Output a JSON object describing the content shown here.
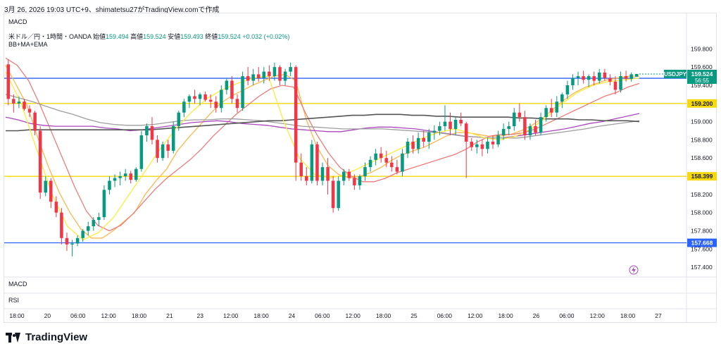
{
  "caption": "3月 26, 2026 19:03 UTC+9、shimatetsu27がTradingView.comで作成",
  "pane_top_label": "MACD",
  "symbol_header": {
    "name": "米ドル／円・1時間・OANDA",
    "open_label": "始値",
    "open": "159.494",
    "high_label": "高値",
    "high": "159.524",
    "low_label": "安値",
    "low": "159.493",
    "close_label": "終値",
    "close": "159.524",
    "change": "+0.032 (+0.02%)"
  },
  "indicator_label": "BB+MA+EMA",
  "lower_panes": [
    "MACD",
    "RSI"
  ],
  "brand": "TradingView",
  "colors": {
    "up": "#089981",
    "down": "#f23645",
    "blue_line": "#2962ff",
    "yellow_line": "#f5d90a",
    "ema_fast": "#ffb74d",
    "sma_mid": "#ef7b7b",
    "bb_upper": "#ab47bc",
    "bb_lower": "#9e9e9e",
    "long_ma": "#555555",
    "ema_short": "#ffeb3b"
  },
  "chart_data": {
    "type": "candlestick",
    "symbol": "USDJPY",
    "timeframe": "1時間",
    "ylim": [
      157.3,
      159.95
    ],
    "y_ticks": [
      "159.800",
      "159.600",
      "159.400",
      "159.000",
      "158.800",
      "158.600",
      "158.200",
      "158.000",
      "157.800",
      "157.600",
      "157.400"
    ],
    "x_ticks": [
      "18:00",
      "20",
      "06:00",
      "12:00",
      "18:00",
      "21",
      "23",
      "12:00",
      "18:00",
      "24",
      "06:00",
      "12:00",
      "18:00",
      "25",
      "06:00",
      "12:00",
      "18:00",
      "26",
      "06:00",
      "12:00",
      "18:00",
      "27"
    ],
    "horizontal_lines": [
      {
        "value": 159.477,
        "label": "159.477",
        "color": "#2962ff"
      },
      {
        "value": 159.2,
        "label": "159.200",
        "color": "#f5d90a"
      },
      {
        "value": 158.399,
        "label": "158.399",
        "color": "#f5d90a"
      },
      {
        "value": 157.668,
        "label": "157.668",
        "color": "#2962ff"
      }
    ],
    "last_price": {
      "label": "USDJPY",
      "price": "159.524",
      "countdown": "56:55"
    },
    "candles": [
      [
        159.63,
        159.68,
        159.18,
        159.25
      ],
      [
        159.25,
        159.3,
        159.1,
        159.2
      ],
      [
        159.2,
        159.28,
        159.15,
        159.22
      ],
      [
        159.22,
        159.25,
        159.12,
        159.14
      ],
      [
        159.14,
        159.18,
        159.05,
        159.1
      ],
      [
        159.1,
        159.12,
        158.85,
        158.9
      ],
      [
        158.9,
        158.95,
        158.15,
        158.22
      ],
      [
        158.22,
        158.4,
        158.18,
        158.35
      ],
      [
        158.35,
        158.38,
        158.05,
        158.12
      ],
      [
        158.12,
        158.18,
        157.95,
        158.0
      ],
      [
        158.0,
        158.05,
        157.65,
        157.72
      ],
      [
        157.72,
        157.78,
        157.58,
        157.65
      ],
      [
        157.65,
        157.7,
        157.52,
        157.66
      ],
      [
        157.66,
        157.75,
        157.63,
        157.72
      ],
      [
        157.72,
        157.82,
        157.68,
        157.8
      ],
      [
        157.8,
        157.9,
        157.75,
        157.85
      ],
      [
        157.85,
        157.95,
        157.8,
        157.92
      ],
      [
        157.92,
        158.0,
        157.85,
        157.95
      ],
      [
        157.95,
        158.3,
        157.92,
        158.25
      ],
      [
        158.25,
        158.4,
        158.2,
        158.35
      ],
      [
        158.35,
        158.42,
        158.28,
        158.38
      ],
      [
        158.38,
        158.45,
        158.3,
        158.4
      ],
      [
        158.4,
        158.48,
        158.35,
        158.43
      ],
      [
        158.43,
        158.46,
        158.32,
        158.36
      ],
      [
        158.36,
        158.5,
        158.34,
        158.48
      ],
      [
        158.48,
        158.9,
        158.45,
        158.85
      ],
      [
        158.85,
        158.98,
        158.78,
        158.95
      ],
      [
        158.95,
        159.05,
        158.75,
        158.8
      ],
      [
        158.8,
        158.85,
        158.55,
        158.6
      ],
      [
        158.6,
        158.78,
        158.57,
        158.75
      ],
      [
        158.75,
        158.8,
        158.6,
        158.68
      ],
      [
        158.68,
        159.0,
        158.65,
        158.95
      ],
      [
        158.95,
        159.12,
        158.9,
        159.1
      ],
      [
        159.1,
        159.25,
        159.05,
        159.22
      ],
      [
        159.22,
        159.3,
        159.15,
        159.28
      ],
      [
        159.28,
        159.35,
        159.2,
        159.25
      ],
      [
        159.25,
        159.32,
        159.18,
        159.3
      ],
      [
        159.3,
        159.33,
        159.22,
        159.24
      ],
      [
        159.24,
        159.3,
        159.15,
        159.22
      ],
      [
        159.22,
        159.28,
        159.1,
        159.15
      ],
      [
        159.15,
        159.4,
        159.1,
        159.35
      ],
      [
        159.35,
        159.48,
        159.3,
        159.45
      ],
      [
        159.45,
        159.5,
        159.2,
        159.25
      ],
      [
        159.25,
        159.3,
        159.1,
        159.15
      ],
      [
        159.15,
        159.55,
        159.12,
        159.5
      ],
      [
        159.5,
        159.6,
        159.4,
        159.45
      ],
      [
        159.45,
        159.58,
        159.4,
        159.52
      ],
      [
        159.52,
        159.6,
        159.44,
        159.48
      ],
      [
        159.48,
        159.6,
        159.42,
        159.55
      ],
      [
        159.55,
        159.62,
        159.45,
        159.5
      ],
      [
        159.5,
        159.65,
        159.45,
        159.6
      ],
      [
        159.6,
        159.62,
        159.4,
        159.45
      ],
      [
        159.45,
        159.58,
        159.4,
        159.55
      ],
      [
        159.55,
        159.65,
        159.5,
        159.6
      ],
      [
        159.6,
        159.62,
        158.35,
        158.55
      ],
      [
        158.55,
        158.65,
        158.35,
        158.4
      ],
      [
        158.4,
        158.5,
        158.3,
        158.35
      ],
      [
        158.35,
        158.8,
        158.32,
        158.75
      ],
      [
        158.75,
        158.78,
        158.3,
        158.35
      ],
      [
        158.35,
        158.55,
        158.3,
        158.5
      ],
      [
        158.5,
        158.6,
        158.2,
        158.35
      ],
      [
        158.35,
        158.4,
        158.0,
        158.05
      ],
      [
        158.05,
        158.4,
        158.02,
        158.35
      ],
      [
        158.35,
        158.48,
        158.3,
        158.45
      ],
      [
        158.45,
        158.48,
        158.35,
        158.38
      ],
      [
        158.38,
        158.42,
        158.25,
        158.3
      ],
      [
        158.3,
        158.42,
        158.25,
        158.4
      ],
      [
        158.4,
        158.55,
        158.35,
        158.5
      ],
      [
        158.5,
        158.62,
        158.45,
        158.58
      ],
      [
        158.58,
        158.7,
        158.52,
        158.65
      ],
      [
        158.65,
        158.72,
        158.55,
        158.6
      ],
      [
        158.6,
        158.68,
        158.5,
        158.55
      ],
      [
        158.55,
        158.62,
        158.45,
        158.5
      ],
      [
        158.5,
        158.58,
        158.42,
        158.45
      ],
      [
        158.45,
        158.7,
        158.4,
        158.65
      ],
      [
        158.65,
        158.82,
        158.6,
        158.78
      ],
      [
        158.78,
        158.85,
        158.65,
        158.7
      ],
      [
        158.7,
        158.88,
        158.65,
        158.82
      ],
      [
        158.82,
        158.9,
        158.72,
        158.78
      ],
      [
        158.78,
        158.92,
        158.7,
        158.88
      ],
      [
        158.88,
        158.96,
        158.8,
        158.9
      ],
      [
        158.9,
        159.0,
        158.85,
        158.95
      ],
      [
        158.95,
        159.18,
        158.9,
        159.0
      ],
      [
        159.0,
        159.1,
        158.85,
        158.92
      ],
      [
        158.92,
        159.05,
        158.85,
        159.02
      ],
      [
        159.02,
        159.1,
        158.95,
        158.98
      ],
      [
        158.98,
        159.0,
        158.38,
        158.78
      ],
      [
        158.78,
        158.82,
        158.68,
        158.72
      ],
      [
        158.72,
        158.8,
        158.65,
        158.75
      ],
      [
        158.75,
        158.8,
        158.62,
        158.7
      ],
      [
        158.7,
        158.82,
        158.65,
        158.78
      ],
      [
        158.78,
        158.85,
        158.7,
        158.75
      ],
      [
        158.75,
        158.9,
        158.72,
        158.85
      ],
      [
        158.85,
        158.98,
        158.8,
        158.92
      ],
      [
        158.92,
        159.0,
        158.85,
        158.95
      ],
      [
        158.95,
        159.15,
        158.9,
        159.1
      ],
      [
        159.1,
        159.2,
        159.0,
        159.05
      ],
      [
        159.05,
        159.12,
        158.8,
        158.85
      ],
      [
        158.85,
        158.98,
        158.8,
        158.95
      ],
      [
        158.95,
        159.02,
        158.85,
        158.88
      ],
      [
        158.88,
        159.1,
        158.85,
        159.05
      ],
      [
        159.05,
        159.18,
        159.0,
        159.15
      ],
      [
        159.15,
        159.25,
        159.05,
        159.1
      ],
      [
        159.1,
        159.28,
        159.05,
        159.22
      ],
      [
        159.22,
        159.32,
        159.15,
        159.3
      ],
      [
        159.3,
        159.45,
        159.25,
        159.4
      ],
      [
        159.4,
        159.52,
        159.35,
        159.48
      ],
      [
        159.48,
        159.55,
        159.4,
        159.5
      ],
      [
        159.5,
        159.56,
        159.42,
        159.46
      ],
      [
        159.46,
        159.52,
        159.38,
        159.5
      ],
      [
        159.5,
        159.55,
        159.4,
        159.45
      ],
      [
        159.45,
        159.58,
        159.42,
        159.54
      ],
      [
        159.54,
        159.58,
        159.45,
        159.48
      ],
      [
        159.48,
        159.52,
        159.4,
        159.44
      ],
      [
        159.44,
        159.5,
        159.3,
        159.35
      ],
      [
        159.35,
        159.55,
        159.32,
        159.5
      ],
      [
        159.5,
        159.56,
        159.44,
        159.47
      ],
      [
        159.47,
        159.54,
        159.44,
        159.52
      ],
      [
        159.494,
        159.524,
        159.493,
        159.524
      ]
    ],
    "series": [
      {
        "name": "",
        "color": "#ffb74d",
        "values": [
          159.62,
          159.4,
          159.18,
          158.82,
          158.5,
          158.22,
          158.0,
          157.82,
          157.72,
          157.72,
          157.8,
          157.9,
          158.0,
          158.2,
          158.35,
          158.48,
          158.68,
          158.82,
          158.95,
          159.08,
          159.2,
          159.28,
          159.34,
          159.4,
          159.45,
          159.5,
          159.52,
          159.45,
          159.02,
          158.72,
          158.52,
          158.42,
          158.38,
          158.4,
          158.44,
          158.5,
          158.58,
          158.64,
          158.68,
          158.72,
          158.78,
          158.84,
          158.88,
          158.88,
          158.86,
          158.84,
          158.84,
          158.86,
          158.9,
          158.96,
          159.04,
          159.14,
          159.24,
          159.32,
          159.38,
          159.42,
          159.46,
          159.48,
          159.5,
          159.5
        ]
      },
      {
        "name": "",
        "color": "#ef7b7b",
        "values": [
          159.7,
          159.62,
          159.45,
          159.18,
          158.88,
          158.58,
          158.28,
          158.02,
          157.86,
          157.8,
          157.86,
          157.98,
          158.12,
          158.26,
          158.38,
          158.48,
          158.58,
          158.7,
          158.84,
          158.96,
          159.08,
          159.18,
          159.28,
          159.36,
          159.4,
          159.38,
          159.1,
          158.86,
          158.66,
          158.5,
          158.4,
          158.34,
          158.34,
          158.38,
          158.44,
          158.48,
          158.52,
          158.56,
          158.6,
          158.64,
          158.7,
          158.78,
          158.84,
          158.86,
          158.86,
          158.88,
          158.92,
          158.98,
          159.04,
          159.1,
          159.16,
          159.22,
          159.28,
          159.32,
          159.38,
          159.42
        ]
      },
      {
        "name": "",
        "color": "#ab47bc",
        "values": [
          159.05,
          159.02,
          158.98,
          158.96,
          158.95,
          158.95,
          158.95,
          158.95,
          158.93,
          158.92,
          158.9,
          158.91,
          158.93,
          158.95,
          158.97,
          158.99,
          159.0,
          159.01,
          159.0,
          158.98,
          158.97,
          158.96,
          158.94,
          158.92,
          158.91,
          158.9,
          158.89,
          158.89,
          158.91,
          158.93,
          158.94,
          158.94,
          158.93,
          158.92,
          158.9,
          158.88,
          158.86,
          158.84,
          158.83,
          158.82,
          158.82,
          158.84,
          158.86,
          158.88,
          158.9,
          158.92,
          158.95,
          158.98,
          159.0,
          159.03,
          159.06,
          159.09
        ]
      },
      {
        "name": "",
        "color": "#9e9e9e",
        "values": [
          159.3,
          159.26,
          159.22,
          159.17,
          159.12,
          159.08,
          159.03,
          158.99,
          158.97,
          158.96,
          158.96,
          158.97,
          158.99,
          159.01,
          159.02,
          159.02,
          159.03,
          159.03,
          159.02,
          159.01,
          158.99,
          158.97,
          158.95,
          158.94,
          158.93,
          158.92,
          158.92,
          158.92,
          158.92,
          158.91,
          158.9,
          158.89,
          158.88,
          158.86,
          158.84,
          158.83,
          158.82,
          158.82,
          158.82,
          158.84,
          158.86,
          158.88,
          158.9,
          158.92,
          158.95,
          158.97,
          158.99,
          159.01
        ]
      },
      {
        "name": "",
        "color": "#555555",
        "values": [
          158.9,
          158.9,
          158.91,
          158.91,
          158.91,
          158.91,
          158.91,
          158.91,
          158.91,
          158.91,
          158.91,
          158.91,
          158.91,
          158.92,
          158.93,
          158.94,
          158.95,
          158.96,
          158.97,
          158.98,
          158.99,
          159.0,
          159.01,
          159.01,
          159.02,
          159.03,
          159.04,
          159.05,
          159.06,
          159.07,
          159.07,
          159.08,
          159.08,
          159.08,
          159.07,
          159.07,
          159.06,
          159.06,
          159.05,
          159.05,
          159.05,
          159.05,
          159.05,
          159.04,
          159.04,
          159.03,
          159.03,
          159.03,
          159.02,
          159.02,
          159.01,
          159.01,
          159.01,
          159.0
        ]
      },
      {
        "name": "",
        "color": "#ffeb3b",
        "values": [
          159.55,
          159.2,
          158.7,
          158.2,
          157.85,
          157.7,
          157.78,
          157.95,
          158.2,
          158.45,
          158.7,
          158.92,
          159.1,
          159.25,
          159.35,
          159.42,
          159.48,
          159.5,
          159.0,
          158.6,
          158.42,
          158.38,
          158.42,
          158.5,
          158.58,
          158.66,
          158.74,
          158.82,
          158.88,
          158.92,
          158.88,
          158.82,
          158.8,
          158.84,
          158.92,
          159.05,
          159.2,
          159.32,
          159.4,
          159.44,
          159.46,
          159.48
        ]
      }
    ]
  }
}
